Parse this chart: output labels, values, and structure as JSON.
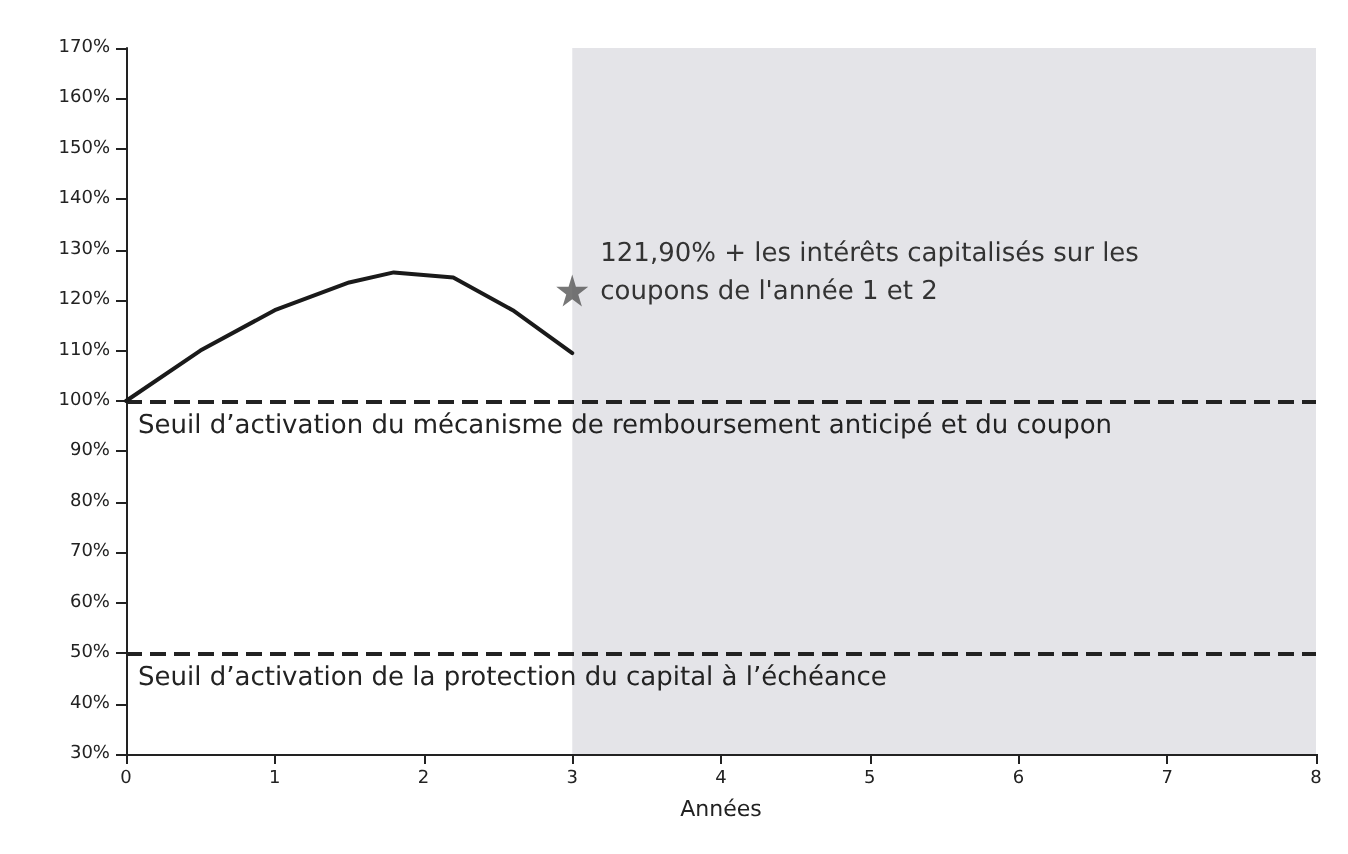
{
  "chart_data": {
    "type": "line",
    "xlabel": "Années",
    "series": [
      {
        "color": "#1a1a1a",
        "x": [
          0,
          0.5,
          1,
          1.5,
          1.8,
          2.2,
          2.6,
          3
        ],
        "values": [
          100,
          110,
          118,
          123.5,
          125.5,
          124.5,
          118,
          109.5
        ],
        "marker": "none",
        "line_style": "solid"
      },
      {
        "type": "scatter",
        "color": "#555555",
        "x": [
          3
        ],
        "values": [
          121.9
        ],
        "marker": "star"
      }
    ],
    "xlim": [
      0,
      8
    ],
    "xticks": [
      0,
      1,
      2,
      3,
      4,
      5,
      6,
      7,
      8
    ],
    "ylim": [
      30,
      170
    ],
    "yticks": [
      {
        "value": 30,
        "label": "30%"
      },
      {
        "value": 40,
        "label": "40%"
      },
      {
        "value": 50,
        "label": "50%"
      },
      {
        "value": 60,
        "label": "60%"
      },
      {
        "value": 70,
        "label": "70%"
      },
      {
        "value": 80,
        "label": "80%"
      },
      {
        "value": 90,
        "label": "90%"
      },
      {
        "value": 100,
        "label": "100%"
      },
      {
        "value": 110,
        "label": "110%"
      },
      {
        "value": 120,
        "label": "120%"
      },
      {
        "value": 130,
        "label": "130%"
      },
      {
        "value": 140,
        "label": "140%"
      },
      {
        "value": 150,
        "label": "150%"
      },
      {
        "value": 160,
        "label": "160%"
      },
      {
        "value": 170,
        "label": "170%"
      }
    ],
    "ref_lines": [
      {
        "axis": "y",
        "value": 100,
        "label": "Seuil d’activation du mécanisme de remboursement anticipé et du coupon",
        "color": "#222222",
        "line_style": "dashed"
      },
      {
        "axis": "y",
        "value": 50,
        "label": "Seuil d’activation de la protection du capital à l’échéance",
        "color": "#222222",
        "line_style": "dashed"
      }
    ],
    "bands": [
      {
        "axis": "x",
        "from": 3,
        "to": 8,
        "color": "#e4e4e8"
      }
    ],
    "annotations": [
      {
        "text": "121,90% + les intérêts capitalisés sur les coupons de l'année 1 et 2",
        "x": 3,
        "y": 121.9
      }
    ],
    "grid": false
  }
}
